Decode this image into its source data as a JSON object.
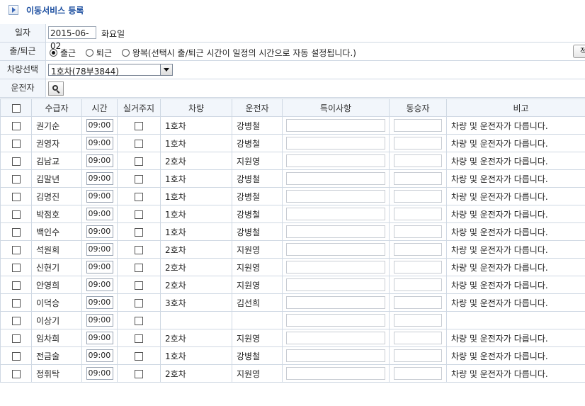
{
  "title": "이동서비스 등록",
  "form": {
    "date_label": "일자",
    "date_value": "2015-06-02",
    "day_of_week": "화요일",
    "direction_label": "출/퇴근",
    "direction_options": [
      "출근",
      "퇴근",
      "왕복(선택시 출/퇴근 시간이 일정의 시간으로 자동 설정됩니다.)"
    ],
    "direction_selected": 0,
    "side_button_label": "적",
    "vehicle_label": "차량선택",
    "vehicle_value": "1호차(78부3844)",
    "driver_label": "운전자"
  },
  "table": {
    "headers": [
      "수급자",
      "시간",
      "실거주지",
      "차량",
      "운전자",
      "특이사항",
      "동승자",
      "비고"
    ],
    "rows": [
      {
        "name": "권기순",
        "time": "09:00",
        "vehicle": "1호차",
        "driver": "강병철",
        "note": "차량 및 운전자가 다릅니다."
      },
      {
        "name": "권영자",
        "time": "09:00",
        "vehicle": "1호차",
        "driver": "강병철",
        "note": "차량 및 운전자가 다릅니다."
      },
      {
        "name": "김남교",
        "time": "09:00",
        "vehicle": "2호차",
        "driver": "지원영",
        "note": "차량 및 운전자가 다릅니다."
      },
      {
        "name": "김말년",
        "time": "09:00",
        "vehicle": "1호차",
        "driver": "강병철",
        "note": "차량 및 운전자가 다릅니다."
      },
      {
        "name": "김명진",
        "time": "09:00",
        "vehicle": "1호차",
        "driver": "강병철",
        "note": "차량 및 운전자가 다릅니다."
      },
      {
        "name": "박점호",
        "time": "09:00",
        "vehicle": "1호차",
        "driver": "강병철",
        "note": "차량 및 운전자가 다릅니다."
      },
      {
        "name": "백인수",
        "time": "09:00",
        "vehicle": "1호차",
        "driver": "강병철",
        "note": "차량 및 운전자가 다릅니다."
      },
      {
        "name": "석원희",
        "time": "09:00",
        "vehicle": "2호차",
        "driver": "지원영",
        "note": "차량 및 운전자가 다릅니다."
      },
      {
        "name": "신현기",
        "time": "09:00",
        "vehicle": "2호차",
        "driver": "지원영",
        "note": "차량 및 운전자가 다릅니다."
      },
      {
        "name": "안영희",
        "time": "09:00",
        "vehicle": "2호차",
        "driver": "지원영",
        "note": "차량 및 운전자가 다릅니다."
      },
      {
        "name": "이덕승",
        "time": "09:00",
        "vehicle": "3호차",
        "driver": "김선희",
        "note": "차량 및 운전자가 다릅니다."
      },
      {
        "name": "이상기",
        "time": "09:00",
        "vehicle": "",
        "driver": "",
        "note": ""
      },
      {
        "name": "임차희",
        "time": "09:00",
        "vehicle": "2호차",
        "driver": "지원영",
        "note": "차량 및 운전자가 다릅니다."
      },
      {
        "name": "전금술",
        "time": "09:00",
        "vehicle": "1호차",
        "driver": "강병철",
        "note": "차량 및 운전자가 다릅니다."
      },
      {
        "name": "정휘탁",
        "time": "09:00",
        "vehicle": "2호차",
        "driver": "지원영",
        "note": "차량 및 운전자가 다릅니다."
      }
    ]
  }
}
